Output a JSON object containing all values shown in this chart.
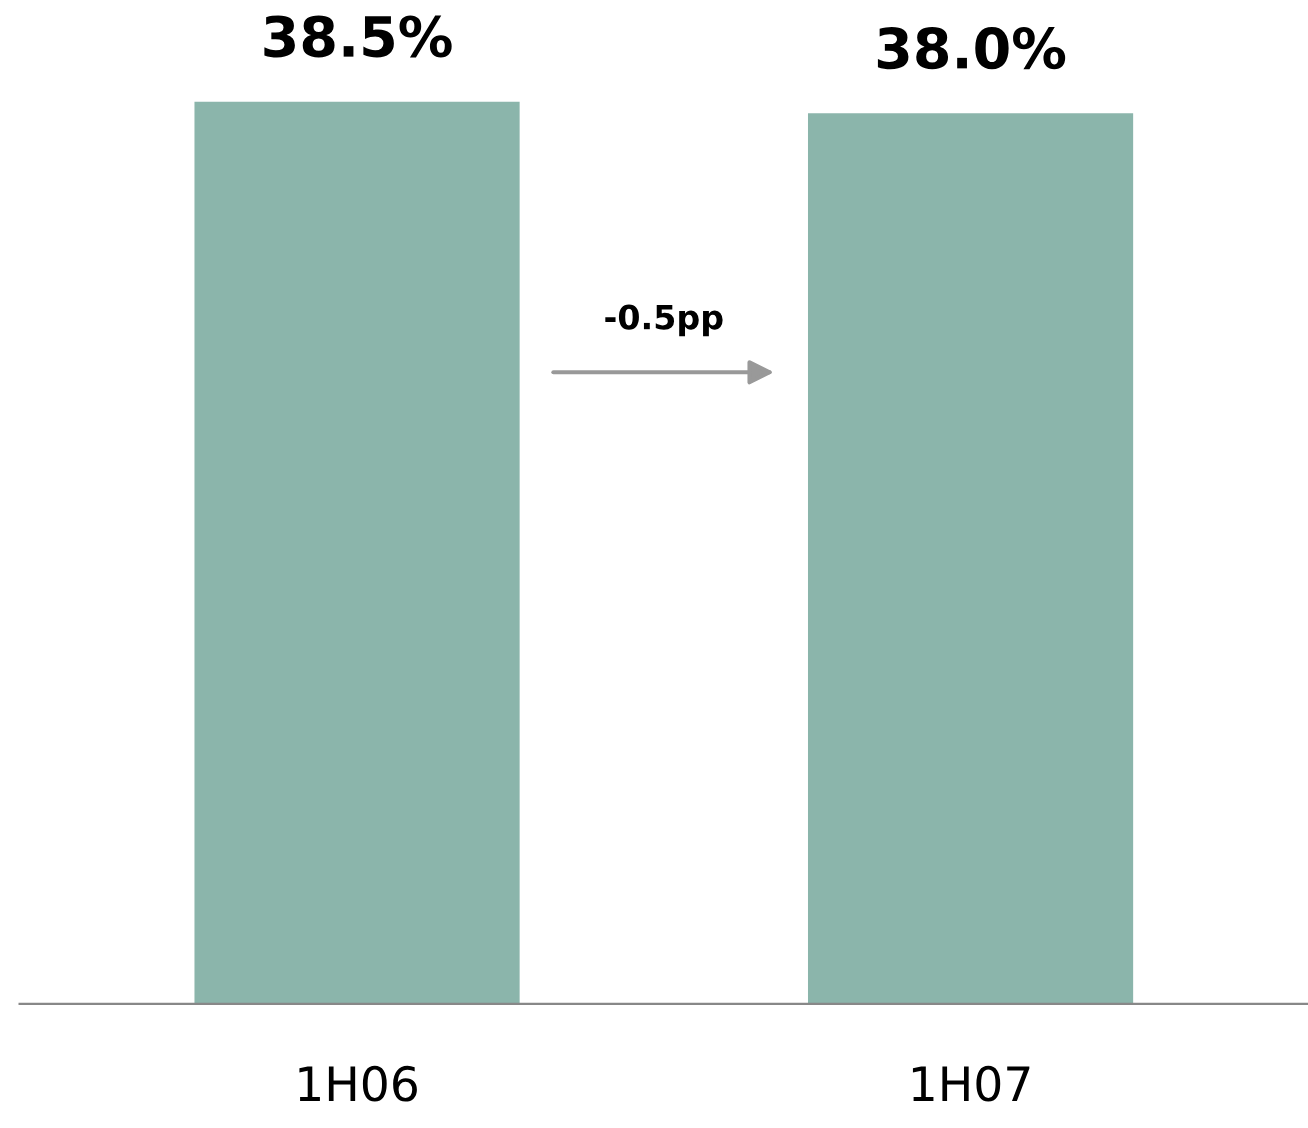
{
  "chart_data": {
    "type": "bar",
    "categories": [
      "1H06",
      "1H07"
    ],
    "values": [
      38.5,
      38.0
    ],
    "value_labels": [
      "38.5%",
      "38.0%"
    ],
    "color": "#8bb5ab",
    "annotations": [
      "-0.5pp"
    ],
    "grid": false
  }
}
